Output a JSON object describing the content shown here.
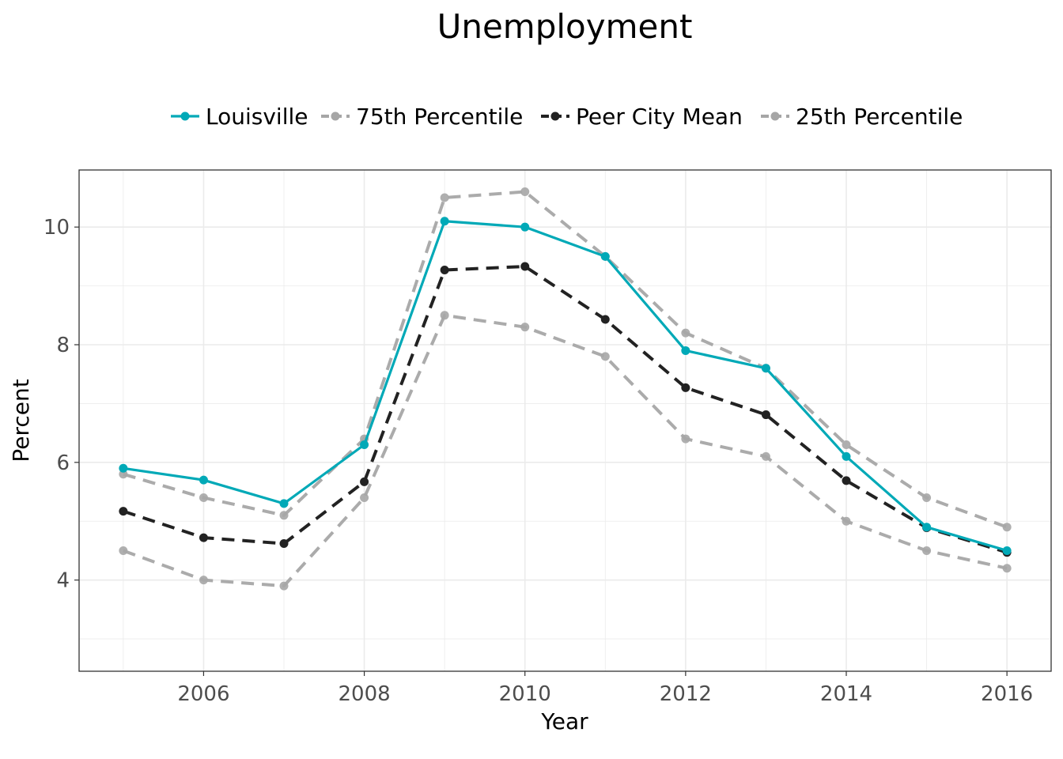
{
  "chart_data": {
    "type": "line",
    "title": "Unemployment",
    "xlabel": "Year",
    "ylabel": "Percent",
    "x": [
      2005,
      2006,
      2007,
      2008,
      2009,
      2010,
      2011,
      2012,
      2013,
      2014,
      2015,
      2016
    ],
    "xlim": [
      2004.45,
      2016.55
    ],
    "ylim": [
      2.45,
      10.97
    ],
    "x_ticks": [
      2006,
      2008,
      2010,
      2012,
      2014,
      2016
    ],
    "y_ticks": [
      4,
      6,
      8,
      10
    ],
    "grid": true,
    "legend_position": "top",
    "series": [
      {
        "name": "Louisville",
        "color": "#00a9b7",
        "line_style": "solid",
        "values": [
          5.9,
          5.7,
          5.3,
          6.3,
          10.1,
          10.0,
          9.5,
          7.9,
          7.6,
          6.1,
          4.9,
          4.5
        ]
      },
      {
        "name": "75th Percentile",
        "color": "#a6a6a6",
        "line_style": "dashed",
        "values": [
          5.8,
          5.4,
          5.1,
          6.4,
          10.5,
          10.6,
          9.5,
          8.2,
          7.6,
          6.3,
          5.4,
          4.9
        ]
      },
      {
        "name": "Peer City Mean",
        "color": "#222222",
        "line_style": "dashed",
        "values": [
          5.17,
          4.72,
          4.62,
          5.67,
          9.27,
          9.33,
          8.43,
          7.27,
          6.81,
          5.69,
          4.89,
          4.47
        ]
      },
      {
        "name": "25th Percentile",
        "color": "#a6a6a6",
        "line_style": "dashed",
        "values": [
          4.5,
          4.0,
          3.9,
          5.4,
          8.5,
          8.3,
          7.8,
          6.4,
          6.1,
          5.0,
          4.5,
          4.2
        ]
      }
    ]
  }
}
